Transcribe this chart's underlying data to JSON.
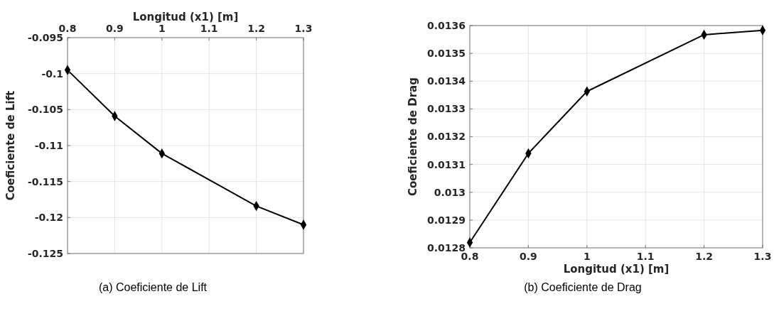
{
  "chart_data": [
    {
      "type": "line",
      "xlabel": "Longitud (x1) [m]",
      "ylabel": "Coeficiente de Lift",
      "annotations": [
        "(a)  Coeficiente de Lift"
      ],
      "x": [
        0.8,
        0.9,
        1,
        1.2,
        1.3
      ],
      "series": [
        {
          "color": "#000000",
          "values": [
            -0.0995,
            -0.1059,
            -0.1111,
            -0.1184,
            -0.121
          ]
        }
      ],
      "xlim": [
        0.8,
        1.3
      ],
      "xticks": [
        0.8,
        0.9,
        1,
        1.1,
        1.2,
        1.3
      ],
      "ylim": [
        -0.125,
        -0.095
      ],
      "yticks": [
        -0.125,
        -0.12,
        -0.115,
        -0.11,
        -0.105,
        -0.1,
        -0.095
      ],
      "grid": true,
      "marker": "diamond",
      "line_style": "solid"
    },
    {
      "type": "line",
      "xlabel": "Longitud (x1) [m]",
      "ylabel": "Coeficiente de Drag",
      "annotations": [
        "(b)  Coeficiente de Drag"
      ],
      "x": [
        0.8,
        0.9,
        1,
        1.2,
        1.3
      ],
      "series": [
        {
          "color": "#000000",
          "values": [
            0.012819,
            0.01314,
            0.013363,
            0.013567,
            0.013583
          ]
        }
      ],
      "xlim": [
        0.8,
        1.3
      ],
      "xticks": [
        0.8,
        0.9,
        1,
        1.1,
        1.2,
        1.3
      ],
      "ylim": [
        0.0128,
        0.0136
      ],
      "yticks": [
        0.0128,
        0.0129,
        0.013,
        0.0131,
        0.0132,
        0.0133,
        0.0134,
        0.0135,
        0.0136
      ],
      "grid": true,
      "marker": "diamond",
      "line_style": "solid"
    }
  ]
}
